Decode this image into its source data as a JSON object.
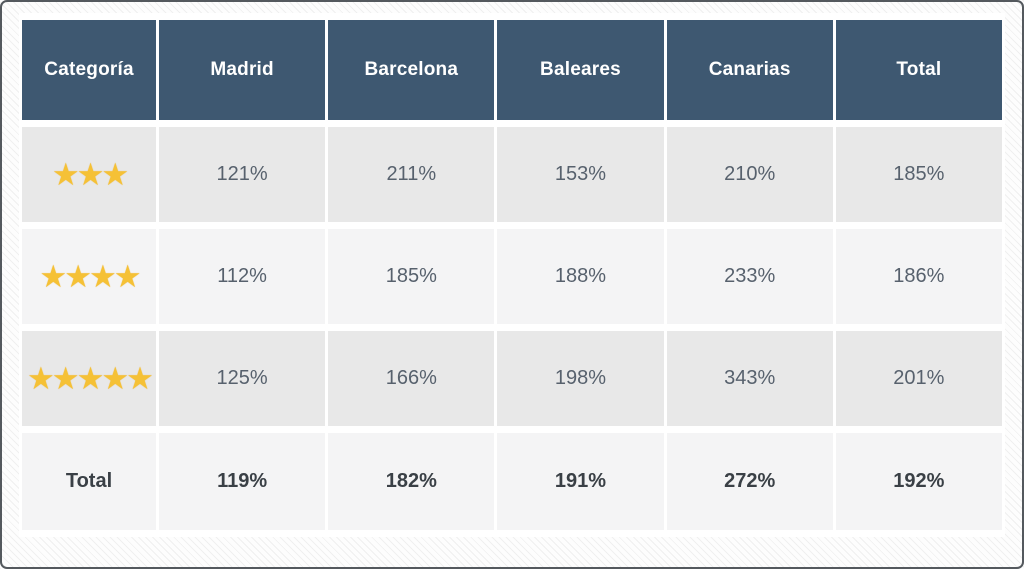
{
  "table": {
    "headers": [
      "Categoría",
      "Madrid",
      "Barcelona",
      "Baleares",
      "Canarias",
      "Total"
    ],
    "rows": [
      {
        "stars": 3,
        "stars_label": "★★★",
        "values": [
          "121%",
          "211%",
          "153%",
          "210%",
          "185%"
        ]
      },
      {
        "stars": 4,
        "stars_label": "★★★★",
        "values": [
          "112%",
          "185%",
          "188%",
          "233%",
          "186%"
        ]
      },
      {
        "stars": 5,
        "stars_label": "★★★★★",
        "values": [
          "125%",
          "166%",
          "198%",
          "343%",
          "201%"
        ]
      }
    ],
    "total_row": {
      "label": "Total",
      "values": [
        "119%",
        "182%",
        "191%",
        "272%",
        "192%"
      ]
    }
  },
  "colors": {
    "header_bg": "#3e5871",
    "header_text": "#ffffff",
    "row_odd_bg": "#e8e8e8",
    "row_even_bg": "#f4f4f5",
    "value_text": "#57616d",
    "total_text": "#3a4046",
    "star": "#f5c136",
    "frame_border": "#54595e"
  },
  "chart_data": {
    "type": "table",
    "title": "",
    "columns": [
      "Categoría",
      "Madrid",
      "Barcelona",
      "Baleares",
      "Canarias",
      "Total"
    ],
    "unit": "%",
    "rows": [
      {
        "category": "3 estrellas",
        "Madrid": 121,
        "Barcelona": 211,
        "Baleares": 153,
        "Canarias": 210,
        "Total": 185
      },
      {
        "category": "4 estrellas",
        "Madrid": 112,
        "Barcelona": 185,
        "Baleares": 188,
        "Canarias": 233,
        "Total": 186
      },
      {
        "category": "5 estrellas",
        "Madrid": 125,
        "Barcelona": 166,
        "Baleares": 198,
        "Canarias": 343,
        "Total": 201
      },
      {
        "category": "Total",
        "Madrid": 119,
        "Barcelona": 182,
        "Baleares": 191,
        "Canarias": 272,
        "Total": 192
      }
    ]
  }
}
